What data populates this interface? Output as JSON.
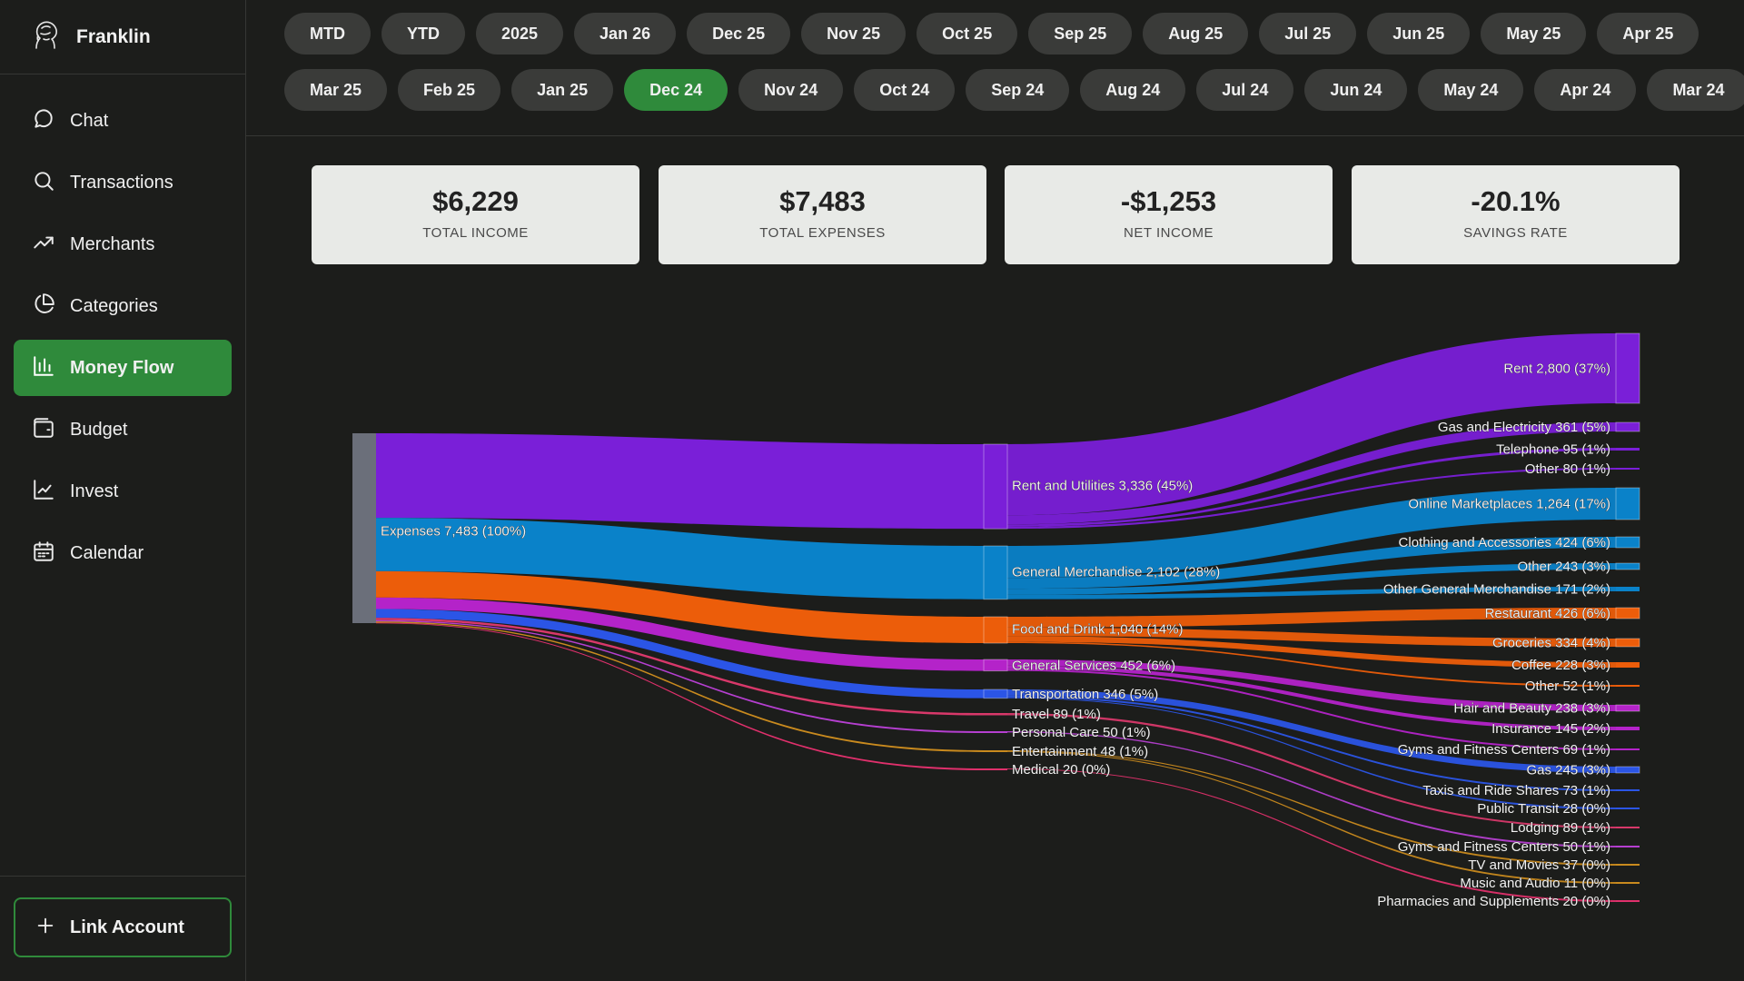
{
  "app": {
    "name": "Franklin"
  },
  "nav": [
    {
      "key": "chat",
      "label": "Chat",
      "icon": "chat-bubble-icon",
      "active": false
    },
    {
      "key": "transactions",
      "label": "Transactions",
      "icon": "search-icon",
      "active": false
    },
    {
      "key": "merchants",
      "label": "Merchants",
      "icon": "trending-up-icon",
      "active": false
    },
    {
      "key": "categories",
      "label": "Categories",
      "icon": "pie-chart-icon",
      "active": false
    },
    {
      "key": "money-flow",
      "label": "Money Flow",
      "icon": "bar-chart-icon",
      "active": true
    },
    {
      "key": "budget",
      "label": "Budget",
      "icon": "wallet-icon",
      "active": false
    },
    {
      "key": "invest",
      "label": "Invest",
      "icon": "line-chart-icon",
      "active": false
    },
    {
      "key": "calendar",
      "label": "Calendar",
      "icon": "calendar-icon",
      "active": false
    }
  ],
  "link_account": {
    "label": "Link Account",
    "icon": "plus-icon"
  },
  "periods": {
    "row1": [
      "MTD",
      "YTD",
      "2025",
      "Jan 26",
      "Dec 25",
      "Nov 25",
      "Oct 25",
      "Sep 25",
      "Aug 25",
      "Jul 25",
      "Jun 25",
      "May 25",
      "Apr 25"
    ],
    "row2": [
      "Mar 25",
      "Feb 25",
      "Jan 25",
      "Dec 24",
      "Nov 24",
      "Oct 24",
      "Sep 24",
      "Aug 24",
      "Jul 24",
      "Jun 24",
      "May 24",
      "Apr 24",
      "Mar 24"
    ],
    "selected": "Dec 24"
  },
  "stats": [
    {
      "value": "$6,229",
      "label": "TOTAL INCOME"
    },
    {
      "value": "$7,483",
      "label": "TOTAL EXPENSES"
    },
    {
      "value": "-$1,253",
      "label": "NET INCOME"
    },
    {
      "value": "-20.1%",
      "label": "SAVINGS RATE"
    }
  ],
  "chart_data": {
    "type": "sankey",
    "root": {
      "name": "Expenses",
      "value": 7483,
      "label": "Expenses 7,483 (100%)",
      "color": "#6b6f7a"
    },
    "categories": [
      {
        "name": "Rent and Utilities",
        "value": 3336,
        "label": "Rent and Utilities 3,336 (45%)",
        "color": "#7a1fd8",
        "children": [
          {
            "name": "Rent",
            "value": 2800,
            "label": "Rent 2,800 (37%)"
          },
          {
            "name": "Gas and Electricity",
            "value": 361,
            "label": "Gas and Electricity 361 (5%)"
          },
          {
            "name": "Telephone",
            "value": 95,
            "label": "Telephone 95 (1%)"
          },
          {
            "name": "Other",
            "value": 80,
            "label": "Other 80 (1%)"
          }
        ]
      },
      {
        "name": "General Merchandise",
        "value": 2102,
        "label": "General Merchandise 2,102 (28%)",
        "color": "#0a82c9",
        "children": [
          {
            "name": "Online Marketplaces",
            "value": 1264,
            "label": "Online Marketplaces 1,264 (17%)"
          },
          {
            "name": "Clothing and Accessories",
            "value": 424,
            "label": "Clothing and Accessories 424 (6%)"
          },
          {
            "name": "Other",
            "value": 243,
            "label": "Other 243 (3%)"
          },
          {
            "name": "Other General Merchandise",
            "value": 171,
            "label": "Other General Merchandise 171 (2%)"
          }
        ]
      },
      {
        "name": "Food and Drink",
        "value": 1040,
        "label": "Food and Drink 1,040 (14%)",
        "color": "#ec5d0a",
        "children": [
          {
            "name": "Restaurant",
            "value": 426,
            "label": "Restaurant 426 (6%)"
          },
          {
            "name": "Groceries",
            "value": 334,
            "label": "Groceries 334 (4%)"
          },
          {
            "name": "Coffee",
            "value": 228,
            "label": "Coffee 228 (3%)"
          },
          {
            "name": "Other",
            "value": 52,
            "label": "Other 52 (1%)"
          }
        ]
      },
      {
        "name": "General Services",
        "value": 452,
        "label": "General Services 452 (6%)",
        "color": "#b423c9",
        "children": [
          {
            "name": "Hair and Beauty",
            "value": 238,
            "label": "Hair and Beauty 238 (3%)"
          },
          {
            "name": "Insurance",
            "value": 145,
            "label": "Insurance 145 (2%)"
          },
          {
            "name": "Gyms and Fitness Centers",
            "value": 69,
            "label": "Gyms and Fitness Centers 69 (1%)"
          }
        ]
      },
      {
        "name": "Transportation",
        "value": 346,
        "label": "Transportation 346 (5%)",
        "color": "#2b55e6",
        "children": [
          {
            "name": "Gas",
            "value": 245,
            "label": "Gas 245 (3%)"
          },
          {
            "name": "Taxis and Ride Shares",
            "value": 73,
            "label": "Taxis and Ride Shares 73 (1%)"
          },
          {
            "name": "Public Transit",
            "value": 28,
            "label": "Public Transit 28 (0%)"
          }
        ]
      },
      {
        "name": "Travel",
        "value": 89,
        "label": "Travel 89 (1%)",
        "color": "#d8386a",
        "children": [
          {
            "name": "Lodging",
            "value": 89,
            "label": "Lodging 89 (1%)"
          }
        ]
      },
      {
        "name": "Personal Care",
        "value": 50,
        "label": "Personal Care 50 (1%)",
        "color": "#b53fd0",
        "children": [
          {
            "name": "Gyms and Fitness Centers",
            "value": 50,
            "label": "Gyms and Fitness Centers 50 (1%)"
          }
        ]
      },
      {
        "name": "Entertainment",
        "value": 48,
        "label": "Entertainment 48 (1%)",
        "color": "#c98a1e",
        "children": [
          {
            "name": "TV and Movies",
            "value": 37,
            "label": "TV and Movies 37 (0%)"
          },
          {
            "name": "Music and Audio",
            "value": 11,
            "label": "Music and Audio 11 (0%)"
          }
        ]
      },
      {
        "name": "Medical",
        "value": 20,
        "label": "Medical 20 (0%)",
        "color": "#e0306c",
        "children": [
          {
            "name": "Pharmacies and Supplements",
            "value": 20,
            "label": "Pharmacies and Supplements 20 (0%)"
          }
        ]
      }
    ]
  }
}
